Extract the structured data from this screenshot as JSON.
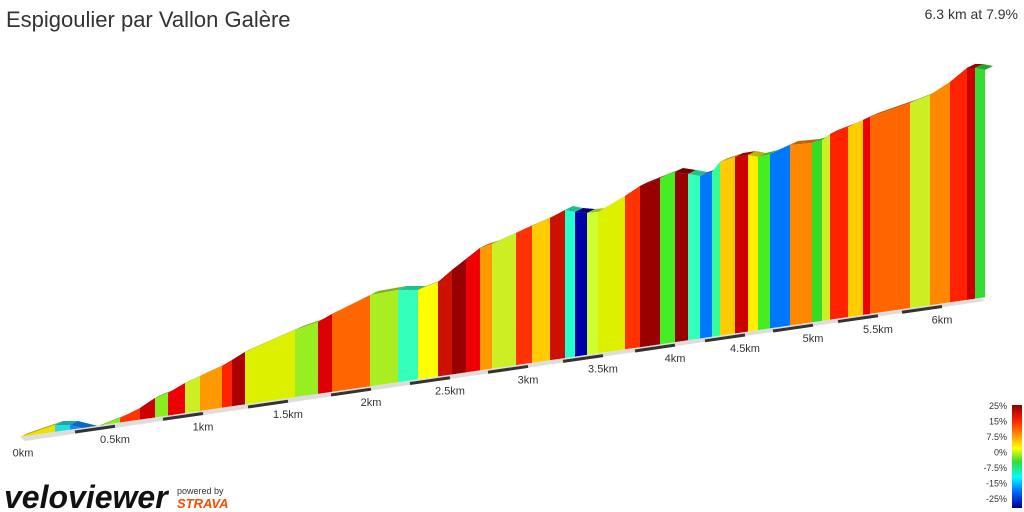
{
  "header": {
    "title": "Espigoulier par Vallon Galère",
    "summary": "6.3 km at 7.9%"
  },
  "distance_labels": [
    "0km",
    "0.5km",
    "1km",
    "1.5km",
    "2km",
    "2.5km",
    "3km",
    "3.5km",
    "4km",
    "4.5km",
    "5km",
    "5.5km",
    "6km"
  ],
  "gradient_legend": [
    "25%",
    "15%",
    "7.5%",
    "0%",
    "-7.5%",
    "-15%",
    "-25%"
  ],
  "logo": {
    "brand": "veloviewer",
    "powered": "powered by",
    "partner": "STRAVA"
  }
}
